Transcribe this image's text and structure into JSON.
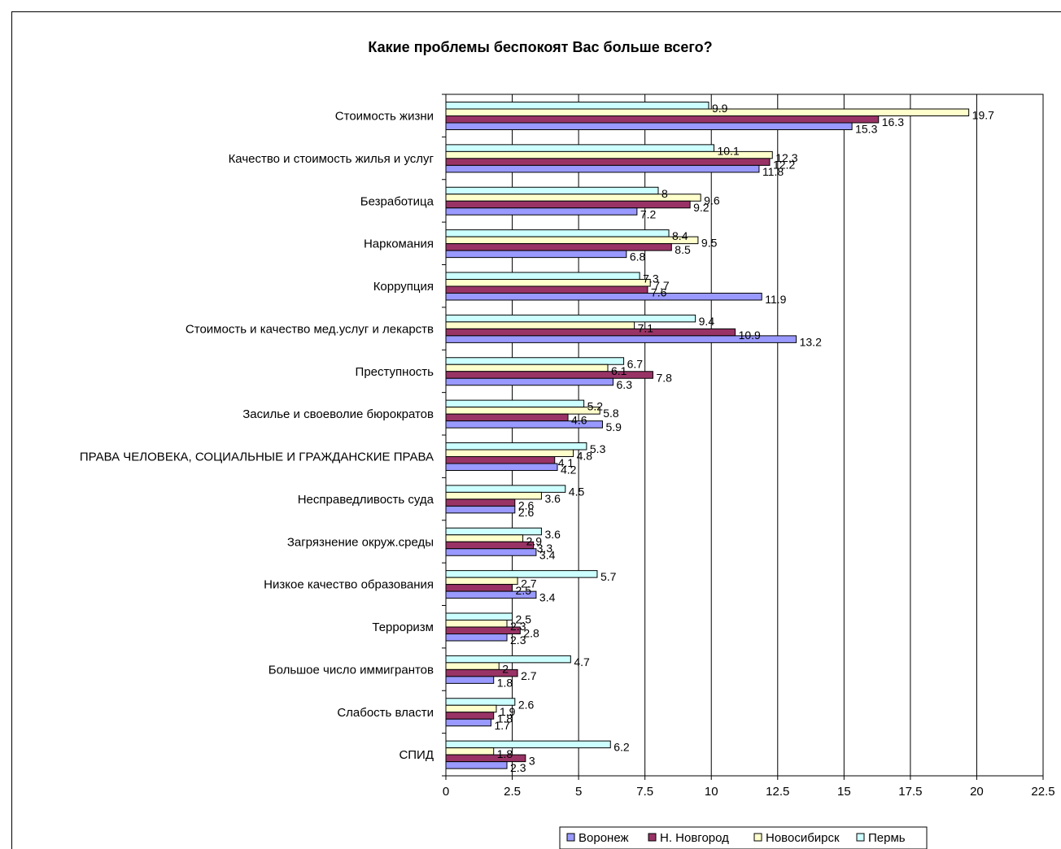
{
  "chart_data": {
    "type": "bar",
    "orientation": "horizontal",
    "title": "Какие проблемы беспокоят Вас больше всего?",
    "xlabel": "",
    "ylabel": "",
    "xlim": [
      0,
      22.5
    ],
    "x_ticks": [
      "0",
      "2.5",
      "5",
      "7.5",
      "10",
      "12.5",
      "15",
      "17.5",
      "20",
      "22.5"
    ],
    "grid": "vertical",
    "legend_position": "bottom",
    "categories": [
      "Стоимость жизни",
      "Качество и стоимость жилья и услуг",
      "Безработица",
      "Наркомания",
      "Коррупция",
      "Стоимость и качество мед.услуг и лекарств",
      "Преступность",
      "Засилье и своеволие бюрократов",
      "ПРАВА ЧЕЛОВЕКА, СОЦИАЛЬНЫЕ И ГРАЖДАНСКИЕ ПРАВА",
      "Несправедливость суда",
      "Загрязнение окруж.среды",
      "Низкое качество образования",
      "Терроризм",
      "Большое число иммигрантов",
      "Слабость власти",
      "СПИД"
    ],
    "series": [
      {
        "name": "Воронеж",
        "color": "#9999ff",
        "values": [
          15.3,
          11.8,
          7.2,
          6.8,
          11.9,
          13.2,
          6.3,
          5.9,
          4.2,
          2.6,
          3.4,
          3.4,
          2.3,
          1.8,
          1.7,
          2.3
        ]
      },
      {
        "name": "Н. Новгород",
        "color": "#993366",
        "values": [
          16.3,
          12.2,
          9.2,
          8.5,
          7.6,
          10.9,
          7.8,
          4.6,
          4.1,
          2.6,
          3.3,
          2.5,
          2.8,
          2.7,
          1.8,
          3
        ]
      },
      {
        "name": "Новосибирск",
        "color": "#ffffcc",
        "values": [
          19.7,
          12.3,
          9.6,
          9.5,
          7.7,
          7.1,
          6.1,
          5.8,
          4.8,
          3.6,
          2.9,
          2.7,
          2.3,
          2,
          1.9,
          1.8
        ]
      },
      {
        "name": "Пермь",
        "color": "#ccffff",
        "values": [
          9.9,
          10.1,
          8,
          8.4,
          7.3,
          9.4,
          6.7,
          5.2,
          5.3,
          4.5,
          3.6,
          5.7,
          2.5,
          4.7,
          2.6,
          6.2
        ]
      }
    ],
    "data_labels": [
      [
        "15.3",
        "11.8",
        "7.2",
        "6.8",
        "11.9",
        "13.2",
        "6.3",
        "5.9",
        "4.2",
        "2.6",
        "3.4",
        "3.4",
        "2.3",
        "1.8",
        "1.7",
        "2.3"
      ],
      [
        "16.3",
        "12.2",
        "9.2",
        "8.5",
        "7.6",
        "10.9",
        "7.8",
        "4.6",
        "4.1",
        "2.6",
        "3.3",
        "2.5",
        "2.8",
        "2.7",
        "1.8",
        "3"
      ],
      [
        "19.7",
        "12.3",
        "9.6",
        "9.5",
        "7.7",
        "7.1",
        "6.1",
        "5.8",
        "4.8",
        "3.6",
        "2.9",
        "2.7",
        "2.3",
        "2",
        "1.9",
        "1.8"
      ],
      [
        "9.9",
        "10.1",
        "8",
        "8.4",
        "7.3",
        "9.4",
        "6.7",
        "5.2",
        "5.3",
        "4.5",
        "3.6",
        "5.7",
        "2.5",
        "4.7",
        "2.6",
        "6.2"
      ]
    ]
  }
}
